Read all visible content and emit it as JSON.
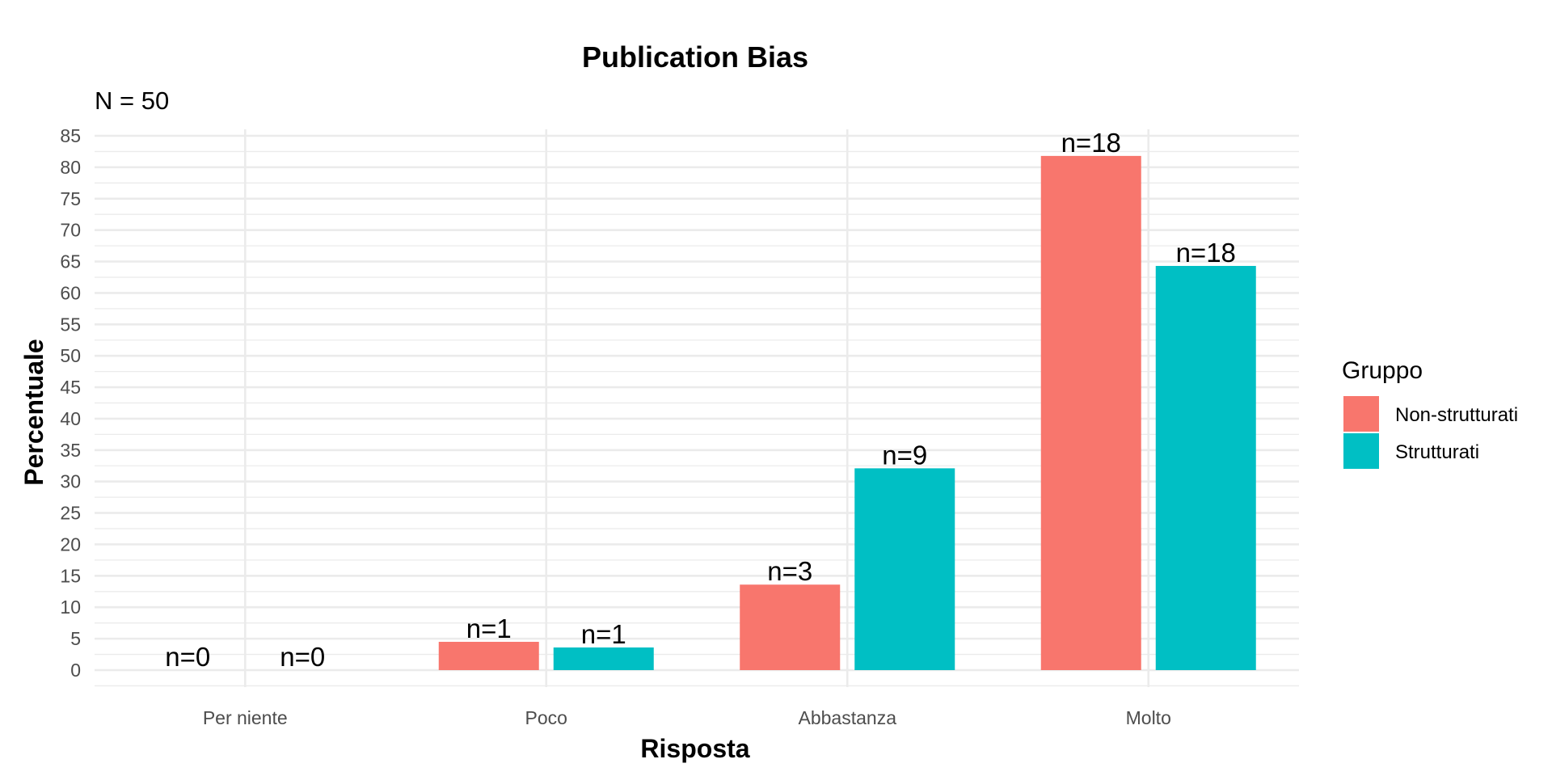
{
  "chart_data": {
    "type": "bar",
    "title": "Publication Bias",
    "subtitle": "N = 50",
    "xlabel": "Risposta",
    "ylabel": "Percentuale",
    "categories": [
      "Per niente",
      "Poco",
      "Abbastanza",
      "Molto"
    ],
    "ylim": [
      0,
      85
    ],
    "yticks": [
      0,
      5,
      10,
      15,
      20,
      25,
      30,
      35,
      40,
      45,
      50,
      55,
      60,
      65,
      70,
      75,
      80,
      85
    ],
    "grid": true,
    "legend": {
      "title": "Gruppo",
      "position": "right"
    },
    "series": [
      {
        "name": "Non-strutturati",
        "color": "#F8766D",
        "values": [
          0,
          4.5,
          13.6,
          81.8
        ],
        "labels": [
          "n=0",
          "n=1",
          "n=3",
          "n=18"
        ]
      },
      {
        "name": "Strutturati",
        "color": "#00BFC4",
        "values": [
          0,
          3.6,
          32.1,
          64.3
        ],
        "labels": [
          "n=0",
          "n=1",
          "n=9",
          "n=18"
        ]
      }
    ]
  }
}
